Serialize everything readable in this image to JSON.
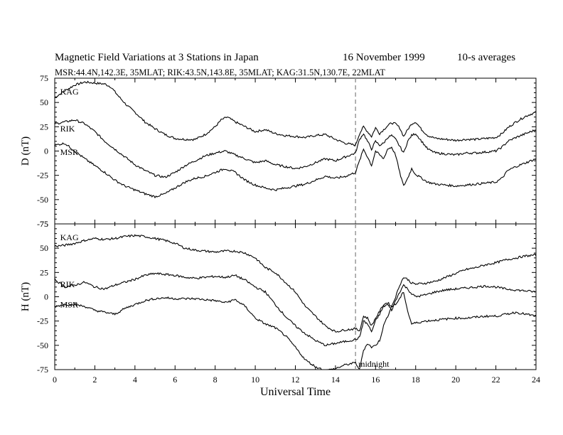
{
  "header": {
    "title": "Magnetic Field Variations at 3 Stations in Japan",
    "date": "16 November 1999",
    "averaging": "10-s averages",
    "stations": "MSR:44.4N,142.3E, 35MLAT;  RIK:43.5N,143.8E, 35MLAT;  KAG:31.5N,130.7E, 22MLAT"
  },
  "chart_data": [
    {
      "type": "line",
      "ylabel": "D (nT)",
      "ylim": [
        -75,
        75
      ],
      "yticks": [
        "75",
        "50",
        "25",
        "0",
        "-25",
        "-50",
        "-75"
      ],
      "xlim": [
        0,
        24
      ],
      "series": [
        {
          "name": "KAG",
          "label_at": [
            0.2,
            58
          ],
          "x": [
            0,
            0.5,
            1,
            1.5,
            2,
            2.5,
            2.8,
            3.2,
            3.6,
            4,
            4.5,
            5,
            5.5,
            6,
            6.5,
            7,
            7.5,
            8,
            8.3,
            8.6,
            9,
            9.5,
            10,
            10.5,
            11,
            11.5,
            12,
            12.5,
            13,
            13.5,
            14,
            14.5,
            15,
            15.2,
            15.4,
            15.6,
            15.8,
            16,
            16.2,
            16.4,
            16.6,
            16.8,
            17,
            17.2,
            17.4,
            17.6,
            17.8,
            18,
            18.3,
            18.6,
            19,
            19.5,
            20,
            20.5,
            21,
            21.5,
            22,
            22.3,
            22.6,
            23,
            23.5,
            24
          ],
          "y": [
            55,
            62,
            68,
            71,
            70,
            69,
            66,
            56,
            47,
            40,
            30,
            23,
            17,
            13,
            12,
            12,
            17,
            25,
            32,
            35,
            30,
            25,
            20,
            22,
            18,
            16,
            15,
            14,
            16,
            17,
            12,
            8,
            6,
            18,
            25,
            20,
            15,
            24,
            18,
            22,
            26,
            29,
            28,
            24,
            15,
            22,
            28,
            30,
            22,
            16,
            13,
            12,
            11,
            12,
            12,
            13,
            14,
            18,
            24,
            30,
            36,
            40
          ]
        },
        {
          "name": "RIK",
          "label_at": [
            0.2,
            20
          ],
          "x": [
            0,
            0.5,
            1,
            1.5,
            2,
            2.5,
            3,
            3.5,
            4,
            4.5,
            5,
            5.5,
            6,
            6.5,
            7,
            7.5,
            8,
            8.5,
            9,
            9.5,
            10,
            10.5,
            11,
            11.5,
            12,
            12.5,
            13,
            13.5,
            14,
            14.5,
            15,
            15.2,
            15.4,
            15.6,
            15.8,
            16,
            16.2,
            16.4,
            16.6,
            16.8,
            17,
            17.2,
            17.4,
            17.6,
            17.8,
            18,
            18.3,
            18.6,
            19,
            19.5,
            20,
            20.5,
            21,
            21.5,
            22,
            22.3,
            22.6,
            23,
            23.5,
            24
          ],
          "y": [
            28,
            30,
            32,
            28,
            20,
            10,
            2,
            -6,
            -14,
            -20,
            -25,
            -27,
            -22,
            -15,
            -10,
            -5,
            -2,
            0,
            -4,
            -8,
            -12,
            -10,
            -14,
            -16,
            -18,
            -16,
            -12,
            -8,
            -10,
            -6,
            -2,
            12,
            18,
            10,
            2,
            10,
            6,
            8,
            14,
            16,
            12,
            5,
            -2,
            10,
            16,
            18,
            10,
            2,
            -2,
            -3,
            -4,
            -2,
            -2,
            -1,
            0,
            4,
            10,
            14,
            18,
            22
          ]
        },
        {
          "name": "MSR",
          "label_at": [
            0.2,
            -4
          ],
          "x": [
            0,
            0.5,
            1,
            1.5,
            2,
            2.5,
            3,
            3.5,
            4,
            4.5,
            5,
            5.5,
            6,
            6.5,
            7,
            7.5,
            8,
            8.5,
            9,
            9.5,
            10,
            10.5,
            11,
            11.5,
            12,
            12.5,
            13,
            13.5,
            14,
            14.5,
            15,
            15.2,
            15.4,
            15.6,
            15.8,
            16,
            16.2,
            16.4,
            16.6,
            16.8,
            17,
            17.2,
            17.4,
            17.6,
            17.8,
            18,
            18.3,
            18.6,
            19,
            19.5,
            20,
            20.5,
            21,
            21.5,
            22,
            22.3,
            22.6,
            23,
            23.5,
            24
          ],
          "y": [
            6,
            8,
            0,
            -8,
            -15,
            -22,
            -30,
            -36,
            -40,
            -44,
            -47,
            -44,
            -38,
            -32,
            -28,
            -26,
            -22,
            -18,
            -22,
            -30,
            -35,
            -38,
            -40,
            -38,
            -36,
            -34,
            -30,
            -26,
            -28,
            -26,
            -22,
            -10,
            2,
            -6,
            -15,
            0,
            -4,
            -8,
            2,
            4,
            -4,
            -22,
            -36,
            -28,
            -18,
            -24,
            -28,
            -32,
            -34,
            -35,
            -36,
            -35,
            -34,
            -33,
            -32,
            -28,
            -20,
            -16,
            -12,
            -8
          ]
        }
      ]
    },
    {
      "type": "line",
      "ylabel": "H (nT)",
      "ylim": [
        -75,
        75
      ],
      "yticks": [
        "75",
        "50",
        "25",
        "0",
        "-25",
        "-50",
        "-75"
      ],
      "xlim": [
        0,
        24
      ],
      "xlabel": "Universal Time",
      "xticks": [
        "0",
        "2",
        "4",
        "6",
        "8",
        "10",
        "12",
        "14",
        "16",
        "18",
        "20",
        "22",
        "24"
      ],
      "annotation": {
        "text": "midnight",
        "x": 15
      },
      "series": [
        {
          "name": "KAG",
          "label_at": [
            0.2,
            58
          ],
          "x": [
            0,
            0.5,
            1,
            1.5,
            2,
            2.5,
            3,
            3.5,
            4,
            4.5,
            5,
            5.5,
            6,
            6.5,
            7,
            7.5,
            8,
            8.5,
            9,
            9.5,
            10,
            10.5,
            11,
            11.5,
            12,
            12.5,
            13,
            13.5,
            14,
            14.5,
            15,
            15.2,
            15.4,
            15.6,
            15.8,
            16,
            16.2,
            16.4,
            16.6,
            16.8,
            17,
            17.2,
            17.4,
            17.6,
            17.8,
            18,
            18.5,
            19,
            19.5,
            20,
            20.5,
            21,
            21.5,
            22,
            22.5,
            23,
            23.5,
            24
          ],
          "y": [
            52,
            53,
            55,
            58,
            60,
            59,
            60,
            62,
            63,
            62,
            60,
            58,
            55,
            50,
            48,
            47,
            46,
            47,
            47,
            45,
            40,
            30,
            25,
            15,
            5,
            -10,
            -20,
            -30,
            -36,
            -34,
            -33,
            -35,
            -20,
            -22,
            -30,
            -22,
            -15,
            -8,
            -6,
            -10,
            0,
            12,
            20,
            18,
            14,
            13,
            14,
            16,
            20,
            24,
            28,
            30,
            33,
            35,
            38,
            40,
            42,
            43
          ]
        },
        {
          "name": "RIK",
          "label_at": [
            0.2,
            10
          ],
          "x": [
            0,
            0.5,
            1,
            1.5,
            2,
            2.5,
            3,
            3.5,
            4,
            4.5,
            5,
            5.5,
            6,
            6.5,
            7,
            7.5,
            8,
            8.5,
            9,
            9.5,
            10,
            10.5,
            11,
            11.5,
            12,
            12.5,
            13,
            13.5,
            14,
            14.5,
            15,
            15.2,
            15.4,
            15.6,
            15.8,
            16,
            16.2,
            16.4,
            16.6,
            16.8,
            17,
            17.2,
            17.4,
            17.6,
            17.8,
            18,
            18.5,
            19,
            19.5,
            20,
            20.5,
            21,
            21.5,
            22,
            22.5,
            23,
            23.5,
            24
          ],
          "y": [
            18,
            10,
            12,
            15,
            10,
            8,
            12,
            15,
            18,
            22,
            24,
            23,
            22,
            20,
            19,
            20,
            21,
            20,
            22,
            17,
            10,
            5,
            -8,
            -20,
            -30,
            -38,
            -45,
            -50,
            -48,
            -46,
            -44,
            -42,
            -25,
            -28,
            -36,
            -25,
            -18,
            -10,
            -8,
            -14,
            -4,
            5,
            12,
            8,
            3,
            0,
            2,
            5,
            7,
            8,
            9,
            10,
            11,
            10,
            8,
            7,
            6,
            5
          ]
        },
        {
          "name": "MSR",
          "label_at": [
            0.2,
            -11
          ],
          "x": [
            0,
            0.5,
            1,
            1.5,
            2,
            2.5,
            3,
            3.5,
            4,
            4.5,
            5,
            5.5,
            6,
            6.5,
            7,
            7.5,
            8,
            8.5,
            9,
            9.5,
            10,
            10.5,
            11,
            11.5,
            12,
            12.5,
            13,
            13.5,
            14,
            14.5,
            15,
            15.2,
            15.4,
            15.6,
            15.8,
            16,
            16.2,
            16.4,
            16.6,
            16.8,
            17,
            17.2,
            17.4,
            17.6,
            17.8,
            18,
            18.5,
            19,
            19.5,
            20,
            20.5,
            21,
            21.5,
            22,
            22.5,
            23,
            23.5,
            24
          ],
          "y": [
            -10,
            -8,
            -8,
            -10,
            -14,
            -16,
            -18,
            -12,
            -8,
            -4,
            -2,
            -1,
            -2,
            -2,
            -2,
            -3,
            -4,
            -6,
            -3,
            -10,
            -22,
            -28,
            -32,
            -40,
            -52,
            -65,
            -72,
            -76,
            -74,
            -70,
            -68,
            -75,
            -55,
            -48,
            -52,
            -50,
            -45,
            -30,
            -20,
            -10,
            -8,
            -2,
            5,
            -15,
            -28,
            -27,
            -25,
            -24,
            -23,
            -22,
            -22,
            -21,
            -20,
            -20,
            -18,
            -16,
            -18,
            -20
          ]
        }
      ]
    }
  ]
}
